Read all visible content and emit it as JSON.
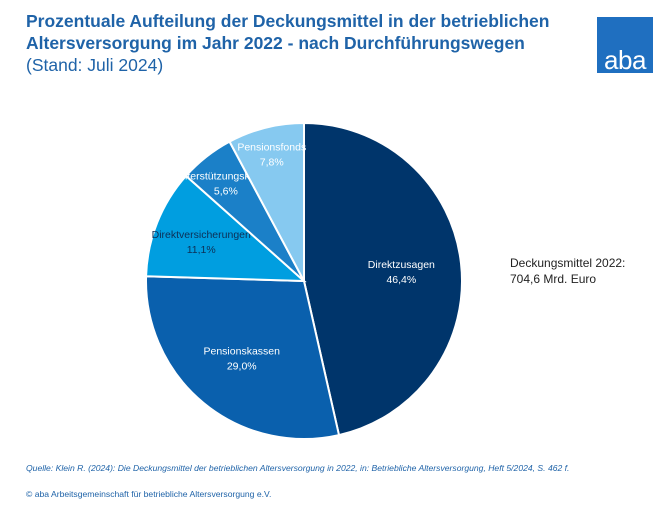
{
  "header": {
    "title_line1": "Prozentuale Aufteilung der Deckungsmittel in der betrieblichen",
    "title_line2": "Altersversorgung im Jahr 2022 - nach Durchführungswegen",
    "stand": "(Stand: Juli 2024)",
    "logo_text": "aba"
  },
  "total": {
    "label": "Deckungsmittel 2022:",
    "value": "704,6 Mrd. Euro"
  },
  "footer": {
    "source": "Quelle: Klein R. (2024): Die Deckungsmittel der betrieblichen Altersversorgung in 2022, in: Betriebliche Altersversorgung, Heft 5/2024, S. 462 f.",
    "copyright": "© aba Arbeitsgemeinschaft für betriebliche Altersversorgung e.V."
  },
  "chart_data": {
    "type": "pie",
    "title": "Prozentuale Aufteilung der Deckungsmittel in der betrieblichen Altersversorgung im Jahr 2022 - nach Durchführungswegen",
    "unit": "%",
    "start": "12 o'clock, clockwise",
    "slices": [
      {
        "name": "Direktzusagen",
        "value": 46.4,
        "label": "46,4%",
        "color": "#00356b",
        "text_color": "#ffffff"
      },
      {
        "name": "Pensionskassen",
        "value": 29.0,
        "label": "29,0%",
        "color": "#0a60ad",
        "text_color": "#ffffff"
      },
      {
        "name": "Direktversicherungen",
        "value": 11.1,
        "label": "11,1%",
        "color": "#009ee0",
        "text_color": "#0d2f55"
      },
      {
        "name": "Unterstützungskassen",
        "value": 5.6,
        "label": "5,6%",
        "color": "#1b80c8",
        "text_color": "#ffffff"
      },
      {
        "name": "Pensionsfonds",
        "value": 7.8,
        "label": "7,8%",
        "color": "#86c9f0",
        "text_color": "#ffffff"
      }
    ]
  }
}
